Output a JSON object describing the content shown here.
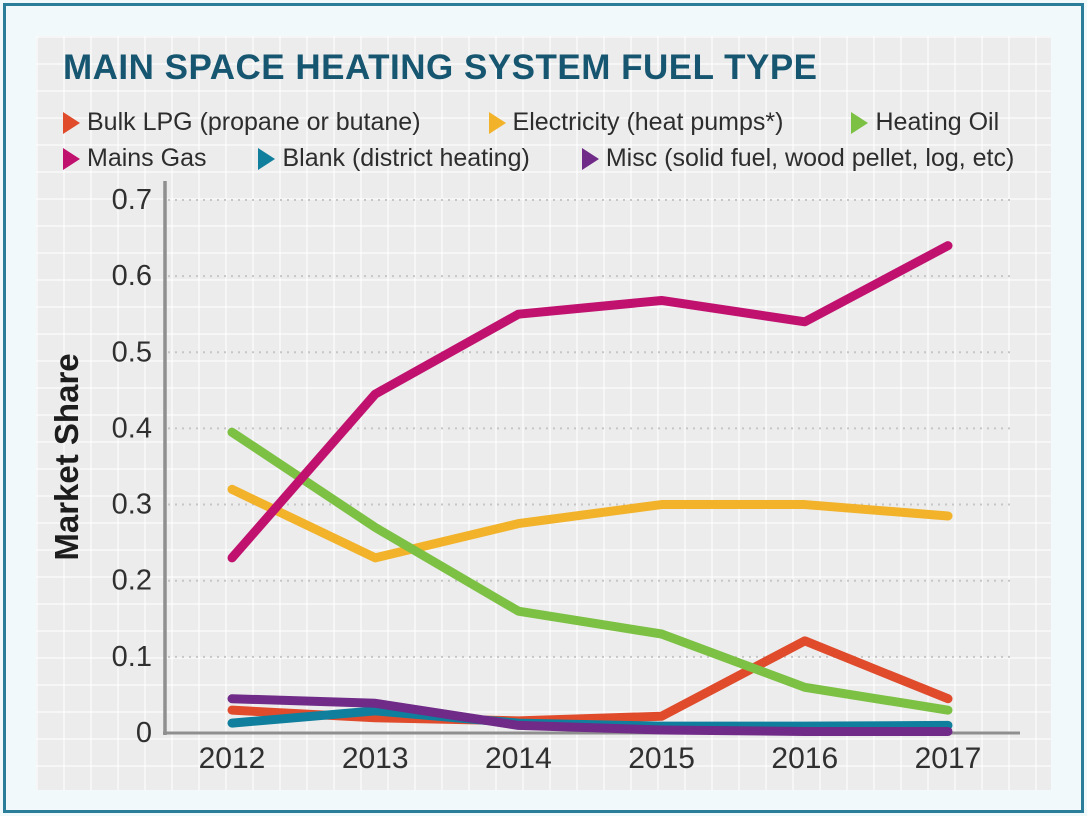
{
  "chart": {
    "title": "MAIN SPACE HEATING SYSTEM FUEL TYPE"
  },
  "chart_data": {
    "type": "line",
    "title": "MAIN SPACE HEATING SYSTEM FUEL TYPE",
    "xlabel": "",
    "ylabel": "Market Share",
    "x_tick_labels": [
      "2012",
      "2013",
      "2014",
      "2015",
      "2016",
      "2017"
    ],
    "y_tick_labels": [
      "0",
      "0.1",
      "0.2",
      "0.3",
      "0.4",
      "0.5",
      "0.6",
      "0.7"
    ],
    "yticks": [
      0,
      0.1,
      0.2,
      0.3,
      0.4,
      0.5,
      0.6,
      0.7
    ],
    "ylim": [
      0,
      0.7
    ],
    "grid": "horizontal dotted",
    "legend_position": "top",
    "series": [
      {
        "name": "Bulk LPG (propane or butane)",
        "color": "#e04b2c",
        "values": [
          0.03,
          0.02,
          0.016,
          0.022,
          0.121,
          0.045
        ]
      },
      {
        "name": "Electricity (heat pumps*)",
        "color": "#f2b22a",
        "values": [
          0.32,
          0.23,
          0.275,
          0.3,
          0.3,
          0.285
        ]
      },
      {
        "name": "Heating Oil",
        "color": "#7cc144",
        "values": [
          0.395,
          0.27,
          0.16,
          0.13,
          0.06,
          0.03
        ]
      },
      {
        "name": "Mains Gas",
        "color": "#c1116f",
        "values": [
          0.23,
          0.445,
          0.55,
          0.568,
          0.54,
          0.64
        ]
      },
      {
        "name": "Blank (district heating)",
        "color": "#0f7f9d",
        "values": [
          0.013,
          0.029,
          0.013,
          0.009,
          0.009,
          0.01
        ]
      },
      {
        "name": "Misc (solid fuel, wood pellet, log, etc)",
        "color": "#6f2b87",
        "values": [
          0.045,
          0.039,
          0.01,
          0.004,
          0.002,
          0.002
        ]
      }
    ]
  },
  "colors": {
    "title": "#175670",
    "text": "#2d2d2d",
    "axis": "#8f8f8f",
    "gridline": "#c6c6c6",
    "panel_background": "#ececec",
    "page_background": "#f1f9fa",
    "border": "#2b7e99"
  }
}
